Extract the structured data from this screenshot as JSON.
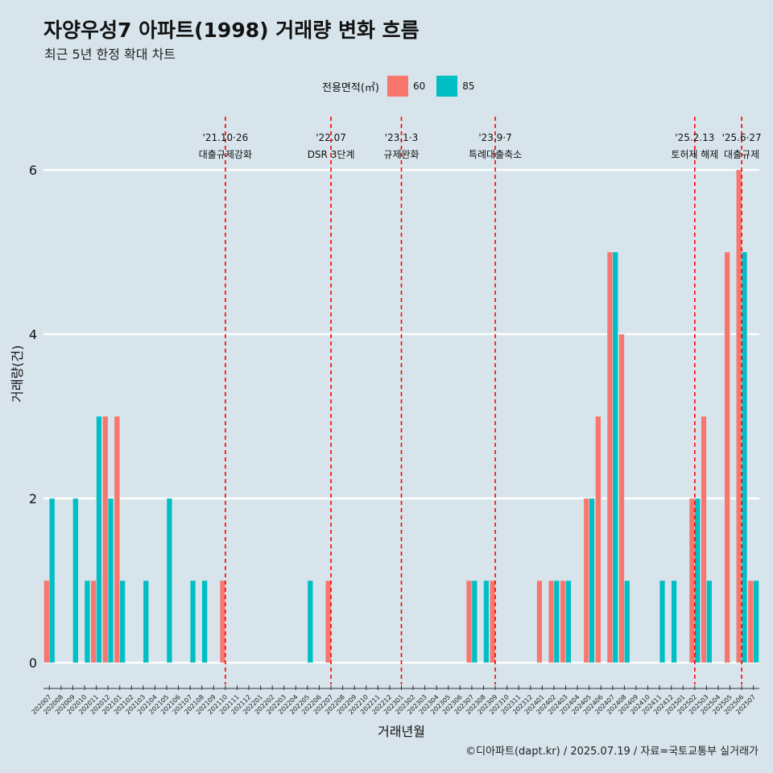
{
  "title": "자양우성7 아파트(1998) 거래량 변화 흐름",
  "subtitle": "최근 5년 한정 확대 차트",
  "caption": "©디아파트(dapt.kr) / 2025.07.19 / 자료=국토교통부 실거래가",
  "legend": {
    "title": "전용면적(㎡)",
    "items": [
      {
        "label": "60",
        "color": "#f8766d"
      },
      {
        "label": "85",
        "color": "#00bfc4"
      }
    ]
  },
  "chart_data": {
    "type": "bar",
    "xlabel": "거래년월",
    "ylabel": "거래량(건)",
    "ylim": [
      0,
      6.4
    ],
    "yticks": [
      "0",
      "2",
      "4",
      "6"
    ],
    "grid": true,
    "legend_position": "top",
    "categories": [
      "202007",
      "202008",
      "202009",
      "202010",
      "202011",
      "202012",
      "202101",
      "202102",
      "202103",
      "202104",
      "202105",
      "202106",
      "202107",
      "202108",
      "202109",
      "202110",
      "202111",
      "202112",
      "202201",
      "202202",
      "202203",
      "202204",
      "202205",
      "202206",
      "202207",
      "202208",
      "202209",
      "202210",
      "202211",
      "202212",
      "202301",
      "202302",
      "202303",
      "202304",
      "202305",
      "202306",
      "202307",
      "202308",
      "202309",
      "202310",
      "202311",
      "202312",
      "202401",
      "202402",
      "202403",
      "202404",
      "202405",
      "202406",
      "202407",
      "202408",
      "202409",
      "202410",
      "202411",
      "202412",
      "202501",
      "202502",
      "202503",
      "202504",
      "202505",
      "202506",
      "202507"
    ],
    "series": [
      {
        "name": "60",
        "color": "#f8766d",
        "values": [
          1,
          0,
          0,
          0,
          1,
          3,
          3,
          0,
          0,
          0,
          0,
          0,
          0,
          0,
          0,
          1,
          0,
          0,
          0,
          0,
          0,
          0,
          0,
          0,
          1,
          0,
          0,
          0,
          0,
          0,
          0,
          0,
          0,
          0,
          0,
          0,
          1,
          0,
          1,
          0,
          0,
          0,
          1,
          1,
          1,
          0,
          2,
          3,
          5,
          4,
          0,
          0,
          0,
          0,
          0,
          2,
          3,
          0,
          5,
          6,
          1
        ]
      },
      {
        "name": "85",
        "color": "#00bfc4",
        "values": [
          2,
          0,
          2,
          1,
          3,
          2,
          1,
          0,
          1,
          0,
          2,
          0,
          1,
          1,
          0,
          0,
          0,
          0,
          0,
          0,
          0,
          0,
          1,
          0,
          0,
          0,
          0,
          0,
          0,
          0,
          0,
          0,
          0,
          0,
          0,
          0,
          1,
          1,
          0,
          0,
          0,
          0,
          0,
          1,
          1,
          0,
          2,
          0,
          5,
          1,
          0,
          0,
          1,
          1,
          0,
          2,
          1,
          0,
          0,
          5,
          1
        ]
      }
    ],
    "annotations": [
      {
        "x": "202110",
        "date": "'21.10·26",
        "label": "대출규제강화"
      },
      {
        "x": "202207",
        "date": "'22.07",
        "label": "DSR 3단계"
      },
      {
        "x": "202301",
        "date": "'23.1·3",
        "label": "규제완화"
      },
      {
        "x": "202309",
        "date": "'23.9·7",
        "label": "특례대출축소"
      },
      {
        "x": "202502",
        "date": "'25.2.13",
        "label": "토허제 해제"
      },
      {
        "x": "202506",
        "date": "'25.6·27",
        "label": "대출규제"
      }
    ]
  }
}
